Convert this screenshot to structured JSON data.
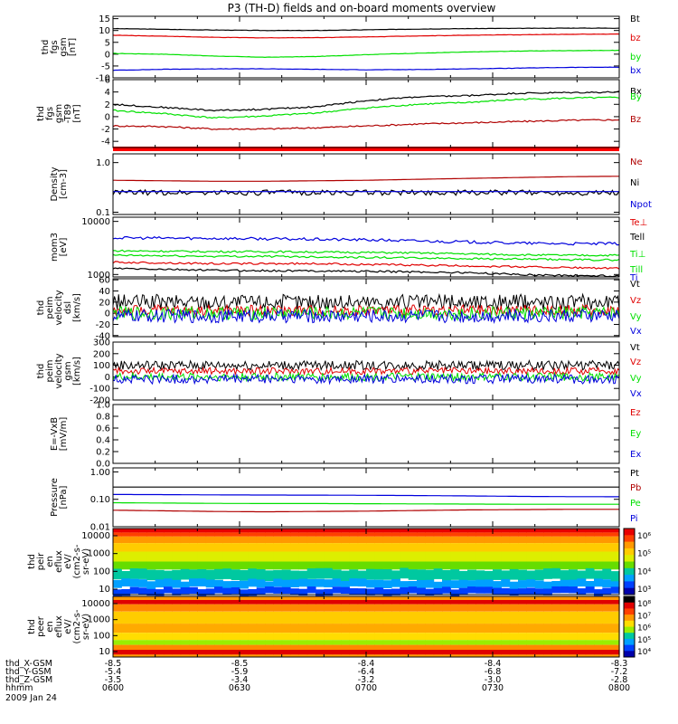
{
  "title": "P3 (TH-D) fields and on-board moments overview",
  "colors": {
    "black": "#000000",
    "red": "#e00000",
    "darkred": "#b00000",
    "green": "#00e000",
    "blue": "#0000dd"
  },
  "chart_data": {
    "type": "line",
    "x_ticks": [
      "0600",
      "0630",
      "0700",
      "0730",
      "0800"
    ],
    "orbit_rows": [
      {
        "label": "thd_X-GSM",
        "values": [
          "-8.5",
          "-8.5",
          "-8.4",
          "-8.4",
          "-8.3"
        ]
      },
      {
        "label": "thd_Y-GSM",
        "values": [
          "-5.4",
          "-5.9",
          "-6.4",
          "-6.8",
          "-7.2"
        ]
      },
      {
        "label": "thd_Z-GSM",
        "values": [
          "-3.5",
          "-3.4",
          "-3.2",
          "-3.0",
          "-2.8"
        ]
      },
      {
        "label": "hhmm",
        "values": [
          "0600",
          "0630",
          "0700",
          "0730",
          "0800"
        ]
      }
    ],
    "date_label": "2009 Jan 24",
    "panels": [
      {
        "ylabel": [
          "thd",
          "fgs",
          "gsm",
          "[nT]"
        ],
        "ticks": [
          "15",
          "10",
          "5",
          "0",
          "-5",
          "-10"
        ],
        "ylim": [
          -10,
          16
        ],
        "series": [
          {
            "name": "Bt",
            "color": "#000000",
            "values": [
              10.8,
              10.5,
              10.2,
              10.0,
              10.0,
              10.3,
              10.6,
              10.8,
              10.9,
              11.0,
              11.0
            ]
          },
          {
            "name": "bz",
            "color": "#e00000",
            "values": [
              8.0,
              7.6,
              7.1,
              6.9,
              7.0,
              7.3,
              7.7,
              8.0,
              8.2,
              8.4,
              8.5
            ]
          },
          {
            "name": "by",
            "color": "#00e000",
            "values": [
              0.3,
              0.0,
              -0.8,
              -1.3,
              -1.0,
              -0.2,
              0.4,
              0.9,
              1.3,
              1.5,
              1.6
            ]
          },
          {
            "name": "bx",
            "color": "#0000dd",
            "values": [
              -6.8,
              -6.4,
              -6.2,
              -6.2,
              -6.4,
              -6.6,
              -6.5,
              -6.2,
              -5.9,
              -5.6,
              -5.5
            ]
          }
        ]
      },
      {
        "ylabel": [
          "thd",
          "fgs",
          "gsm",
          "-T89",
          "[nT]"
        ],
        "ticks": [
          "6",
          "4",
          "2",
          "0",
          "-2",
          "-4"
        ],
        "ylim": [
          -5,
          6
        ],
        "series": [
          {
            "name": "Bx",
            "color": "#000000",
            "values": [
              2.0,
              1.5,
              1.0,
              1.2,
              1.6,
              2.6,
              3.2,
              3.4,
              3.8,
              3.9,
              4.0
            ]
          },
          {
            "name": "By",
            "color": "#00e000",
            "values": [
              1.0,
              0.5,
              -0.2,
              0.1,
              0.6,
              1.4,
              2.0,
              2.3,
              2.8,
              3.0,
              3.1
            ]
          },
          {
            "name": "Bz",
            "color": "#b00000",
            "values": [
              -1.5,
              -1.6,
              -2.0,
              -2.0,
              -1.8,
              -1.5,
              -1.2,
              -1.0,
              -0.8,
              -0.6,
              -0.5
            ]
          }
        ]
      },
      {
        "ylabel": [
          "Density",
          "[cm-3]"
        ],
        "ticks": [
          "1.0",
          "0.1"
        ],
        "yscale": "log",
        "ylim": [
          0.09,
          1.5
        ],
        "series": [
          {
            "name": "Ne",
            "color": "#b00000",
            "values": [
              0.44,
              0.43,
              0.42,
              0.42,
              0.43,
              0.44,
              0.46,
              0.48,
              0.5,
              0.52,
              0.53
            ]
          },
          {
            "name": "Ni",
            "color": "#000000",
            "values": [
              0.25,
              0.25,
              0.25,
              0.25,
              0.25,
              0.25,
              0.25,
              0.25,
              0.25,
              0.25,
              0.25
            ]
          },
          {
            "name": "Npot",
            "color": "#0000dd",
            "values": [
              0.26,
              0.26,
              0.26,
              0.26,
              0.26,
              0.26,
              0.26,
              0.26,
              0.26,
              0.26,
              0.26
            ]
          }
        ]
      },
      {
        "ylabel": [
          "mom3",
          "[eV]"
        ],
        "ticks": [
          "10000",
          "1000"
        ],
        "yscale": "log",
        "ylim": [
          900,
          12000
        ],
        "series": [
          {
            "name": "Te⊥",
            "color": "#e00000",
            "values": [
              1700,
              1650,
              1600,
              1600,
              1600,
              1550,
              1500,
              1450,
              1400,
              1350,
              1300
            ]
          },
          {
            "name": "Tell",
            "color": "#000000",
            "values": [
              1300,
              1250,
              1200,
              1180,
              1170,
              1150,
              1120,
              1080,
              1000,
              960,
              940
            ]
          },
          {
            "name": "Ti⊥",
            "color": "#00e000",
            "values": [
              2800,
              2750,
              2700,
              2700,
              2650,
              2600,
              2550,
              2450,
              2350,
              2300,
              2300
            ]
          },
          {
            "name": "Till",
            "color": "#00e000",
            "values": [
              2300,
              2250,
              2200,
              2200,
              2150,
              2100,
              2050,
              2000,
              1950,
              1900,
              1880
            ]
          },
          {
            "name": "Ti",
            "color": "#0000dd",
            "values": [
              4900,
              4850,
              4800,
              4700,
              4600,
              4500,
              4300,
              4100,
              3900,
              3800,
              3800
            ]
          }
        ]
      },
      {
        "ylabel": [
          "thd",
          "peim",
          "velocity",
          "dsl",
          "[km/s]"
        ],
        "ticks": [
          "60",
          "40",
          "20",
          "0",
          "-20",
          "-40"
        ],
        "ylim": [
          -42,
          62
        ],
        "series": [
          {
            "name": "Vt",
            "color": "#000000",
            "values": [
              20,
              20,
              20,
              20,
              20,
              20,
              20,
              20,
              20,
              20,
              20
            ]
          },
          {
            "name": "Vz",
            "color": "#e00000",
            "values": [
              5,
              5,
              5,
              5,
              5,
              5,
              5,
              5,
              5,
              5,
              5
            ]
          },
          {
            "name": "Vy",
            "color": "#00e000",
            "values": [
              0,
              0,
              0,
              0,
              0,
              0,
              0,
              0,
              0,
              0,
              0
            ]
          },
          {
            "name": "Vx",
            "color": "#0000dd",
            "values": [
              -5,
              -5,
              -5,
              -5,
              -5,
              -5,
              -5,
              -5,
              -5,
              -5,
              -5
            ]
          }
        ]
      },
      {
        "ylabel": [
          "thd",
          "peim",
          "velocity",
          "gsm",
          "[km/s]"
        ],
        "ticks": [
          "300",
          "200",
          "100",
          "0",
          "-100",
          "-200"
        ],
        "ylim": [
          -200,
          300
        ],
        "series": [
          {
            "name": "Vt",
            "color": "#000000",
            "values": [
              100,
              100,
              100,
              100,
              100,
              100,
              100,
              100,
              100,
              100,
              100
            ]
          },
          {
            "name": "Vz",
            "color": "#e00000",
            "values": [
              50,
              50,
              50,
              50,
              50,
              50,
              50,
              50,
              50,
              50,
              50
            ]
          },
          {
            "name": "Vy",
            "color": "#00e000",
            "values": [
              0,
              0,
              0,
              0,
              0,
              0,
              0,
              0,
              0,
              0,
              0
            ]
          },
          {
            "name": "Vx",
            "color": "#0000dd",
            "values": [
              -20,
              -20,
              -20,
              -20,
              -20,
              -20,
              -20,
              -20,
              -20,
              -20,
              -20
            ]
          }
        ]
      },
      {
        "ylabel": [
          "E=-VxB",
          "[mV/m]"
        ],
        "ticks": [
          "1.0",
          "0.8",
          "0.6",
          "0.4",
          "0.2",
          "0.0"
        ],
        "ylim": [
          0,
          1.0
        ],
        "series": [
          {
            "name": "Ez",
            "color": "#e00000",
            "values": []
          },
          {
            "name": "Ey",
            "color": "#00e000",
            "values": []
          },
          {
            "name": "Ex",
            "color": "#0000dd",
            "values": []
          }
        ]
      },
      {
        "ylabel": [
          "Pressure",
          "[nPa]"
        ],
        "ticks": [
          "1.00",
          "0.10",
          "0.01"
        ],
        "yscale": "log",
        "ylim": [
          0.01,
          1.4
        ],
        "series": [
          {
            "name": "Pt",
            "color": "#000000",
            "values": [
              0.28,
              0.28,
              0.28,
              0.28,
              0.28,
              0.28,
              0.28,
              0.28,
              0.28,
              0.28,
              0.28
            ]
          },
          {
            "name": "Pb",
            "color": "#b00000",
            "values": [
              0.04,
              0.038,
              0.036,
              0.035,
              0.036,
              0.037,
              0.039,
              0.041,
              0.042,
              0.043,
              0.043
            ]
          },
          {
            "name": "Pe",
            "color": "#00e000",
            "values": [
              0.075,
              0.073,
              0.071,
              0.07,
              0.07,
              0.069,
              0.068,
              0.067,
              0.066,
              0.066,
              0.066
            ]
          },
          {
            "name": "Pi",
            "color": "#0000dd",
            "values": [
              0.15,
              0.148,
              0.145,
              0.143,
              0.142,
              0.14,
              0.137,
              0.133,
              0.128,
              0.125,
              0.124
            ]
          }
        ]
      },
      {
        "ylabel": [
          "thd",
          "peir",
          "en",
          "eflux",
          "eV/",
          "(cm2-s-",
          "sr-eV)"
        ],
        "ticks": [
          "10000",
          "1000",
          "100",
          "10"
        ],
        "yscale": "log",
        "type": "heatmap",
        "colorbar_ticks": [
          "10⁶",
          "10⁵",
          "10⁴",
          "10³"
        ]
      },
      {
        "ylabel": [
          "thd",
          "peer",
          "en",
          "eflux",
          "eV/",
          "(cm2-s-",
          "sr-eV)"
        ],
        "ticks": [
          "10000",
          "1000",
          "100",
          "10"
        ],
        "yscale": "log",
        "type": "heatmap",
        "colorbar_ticks": [
          "10⁸",
          "10⁷",
          "10⁶",
          "10⁵",
          "10⁴"
        ]
      }
    ]
  }
}
